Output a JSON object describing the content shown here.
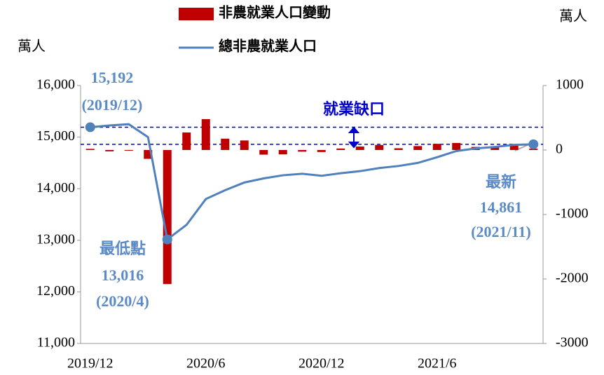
{
  "chart_data": {
    "type": "bar-line",
    "y_label": "萬人",
    "y2_label": "萬人",
    "categories": [
      "2019/12",
      null,
      null,
      null,
      null,
      null,
      "2020/6",
      null,
      null,
      null,
      null,
      null,
      "2020/12",
      null,
      null,
      null,
      null,
      null,
      "2021/6",
      null,
      null,
      null,
      null,
      null
    ],
    "series": [
      {
        "name": "非農就業人口變動",
        "color": "#c00000",
        "kind": "bar",
        "axis": "y2",
        "values": [
          18,
          -21,
          -9,
          -137,
          -2079,
          272,
          479,
          176,
          148,
          -72,
          -68,
          -26,
          -31,
          23,
          54,
          78,
          27,
          61,
          96,
          109,
          48,
          38,
          65,
          21
        ]
      },
      {
        "name": "總非農就業人口",
        "color": "#4f81bd",
        "kind": "line",
        "axis": "y",
        "values": [
          15192,
          15225,
          15250,
          15000,
          13016,
          13300,
          13800,
          13970,
          14120,
          14200,
          14260,
          14290,
          14250,
          14300,
          14340,
          14400,
          14440,
          14500,
          14610,
          14730,
          14780,
          14810,
          14850,
          14861
        ]
      }
    ],
    "ylim": [
      11000,
      16000
    ],
    "yticks": [
      {
        "value": 11000,
        "label": "11,000"
      },
      {
        "value": 12000,
        "label": "12,000"
      },
      {
        "value": 13000,
        "label": "13,000"
      },
      {
        "value": 14000,
        "label": "14,000"
      },
      {
        "value": 15000,
        "label": "15,000"
      },
      {
        "value": 16000,
        "label": "16,000"
      }
    ],
    "y2lim": [
      -3000,
      1000
    ],
    "y2ticks": [
      -3000,
      -2000,
      -1000,
      0,
      1000
    ],
    "annotations": {
      "start": [
        "15,192",
        "(2019/12)"
      ],
      "low": [
        "最低點",
        "13,016",
        "(2020/4)"
      ],
      "latest": [
        "最新",
        "14,861",
        "(2021/11)"
      ],
      "gap": "就業缺口"
    }
  }
}
